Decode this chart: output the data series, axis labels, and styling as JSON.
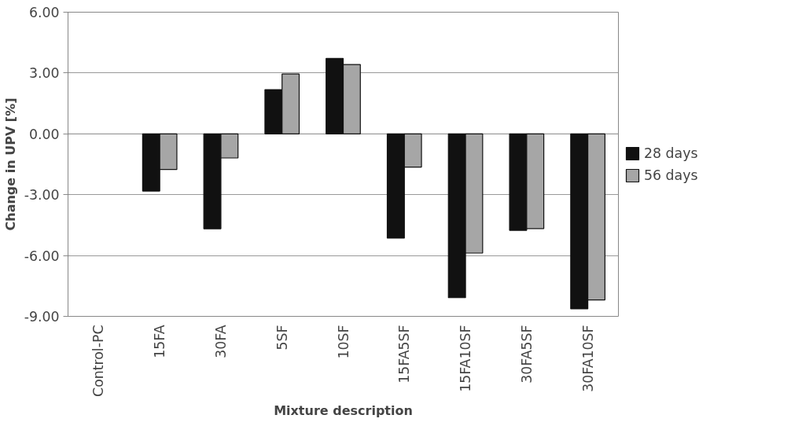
{
  "chart_data": {
    "type": "bar",
    "xlabel": "Mixture description",
    "ylabel": "Change in UPV [%]",
    "categories": [
      "Control-PC",
      "15FA",
      "30FA",
      "5SF",
      "10SF",
      "15FA5SF",
      "15FA10SF",
      "30FA5SF",
      "30FA10SF"
    ],
    "series": [
      {
        "name": "28 days",
        "color": "#111111",
        "values": [
          null,
          -2.82,
          -4.68,
          2.18,
          3.72,
          -5.14,
          -8.08,
          -4.76,
          -8.63
        ]
      },
      {
        "name": "56 days",
        "color": "#a6a6a6",
        "values": [
          null,
          -1.76,
          -1.19,
          2.95,
          3.42,
          -1.64,
          -5.88,
          -4.67,
          -8.19
        ]
      }
    ],
    "ylim": [
      -9,
      6
    ],
    "yticks": [
      {
        "value": -9,
        "label": "-9.00"
      },
      {
        "value": -6,
        "label": "-6.00"
      },
      {
        "value": -3,
        "label": "-3.00"
      },
      {
        "value": 0,
        "label": "0.00"
      },
      {
        "value": 3,
        "label": "3.00"
      },
      {
        "value": 6,
        "label": "6.00"
      }
    ],
    "grid": "y",
    "legend": "right"
  }
}
